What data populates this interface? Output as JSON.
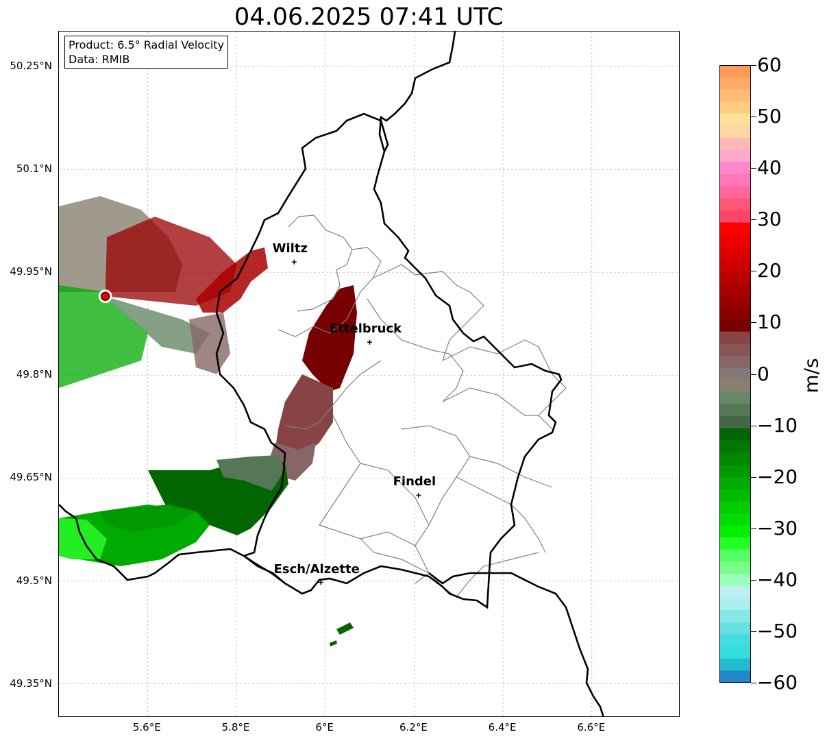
{
  "title": "04.06.2025 07:41 UTC",
  "info": {
    "product": "Product: 6.5° Radial Velocity",
    "data": "Data: RMIB"
  },
  "lat_labels": [
    "50.25°N",
    "50.1°N",
    "49.95°N",
    "49.8°N",
    "49.65°N",
    "49.5°N",
    "49.35°N"
  ],
  "lon_labels": [
    "5.6°E",
    "5.8°E",
    "6°E",
    "6.2°E",
    "6.4°E",
    "6.6°E"
  ],
  "cities": [
    {
      "name": "Wiltz",
      "lon": 5.93,
      "lat": 49.965
    },
    {
      "name": "Ettelbruck",
      "lon": 6.1,
      "lat": 49.848
    },
    {
      "name": "Findel",
      "lon": 6.21,
      "lat": 49.625
    },
    {
      "name": "Esch/Alzette",
      "lon": 5.99,
      "lat": 49.498
    }
  ],
  "radar_site": {
    "lon": 5.505,
    "lat": 49.915,
    "color": "#e60000"
  },
  "colorbar": {
    "unit": "m/s",
    "ticks": [
      "60",
      "50",
      "40",
      "30",
      "20",
      "10",
      "0",
      "−10",
      "−20",
      "−30",
      "−40",
      "−50",
      "−60"
    ],
    "range": [
      -60,
      60
    ],
    "colors_top_to_bottom": [
      "#ff9955",
      "#ffaa66",
      "#ffbb77",
      "#ffcc80",
      "#ffe099",
      "#ffd7a6",
      "#ffb7b7",
      "#ffaacc",
      "#ff88cc",
      "#ff77bb",
      "#ff6699",
      "#ff5577",
      "#ff4466",
      "#ff0000",
      "#ee0000",
      "#dd0000",
      "#cc0000",
      "#bb0000",
      "#aa0000",
      "#990000",
      "#880000",
      "#770000",
      "#884444",
      "#885555",
      "#886666",
      "#887777",
      "#888070",
      "#668866",
      "#557755",
      "#446644",
      "#006600",
      "#007700",
      "#008800",
      "#009900",
      "#00aa00",
      "#00bb00",
      "#00cc00",
      "#00dd00",
      "#00ee00",
      "#22ff22",
      "#55ff66",
      "#77ff88",
      "#99ffbb",
      "#bbeeee",
      "#aaeeee",
      "#88e8e8",
      "#66e0e0",
      "#44dddd",
      "#33dddd",
      "#22bbcc",
      "#2288cc"
    ]
  }
}
